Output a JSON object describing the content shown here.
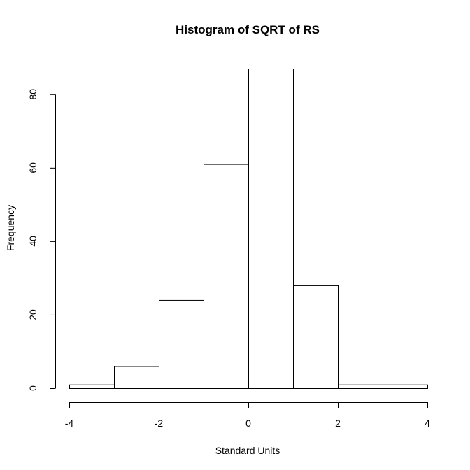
{
  "chart_data": {
    "type": "bar",
    "title": "Histogram of SQRT of RS",
    "xlabel": "Standard Units",
    "ylabel": "Frequency",
    "bins": [
      {
        "x0": -4,
        "x1": -3,
        "count": 1
      },
      {
        "x0": -3,
        "x1": -2,
        "count": 6
      },
      {
        "x0": -2,
        "x1": -1,
        "count": 24
      },
      {
        "x0": -1,
        "x1": 0,
        "count": 61
      },
      {
        "x0": 0,
        "x1": 1,
        "count": 87
      },
      {
        "x0": 1,
        "x1": 2,
        "count": 28
      },
      {
        "x0": 2,
        "x1": 3,
        "count": 1
      },
      {
        "x0": 3,
        "x1": 4,
        "count": 1
      }
    ],
    "xlim": [
      -4,
      4
    ],
    "ylim": [
      0,
      87
    ],
    "xticks": [
      -4,
      -2,
      0,
      2,
      4
    ],
    "yticks": [
      0,
      20,
      40,
      60,
      80
    ],
    "grid": false,
    "legend": false
  }
}
